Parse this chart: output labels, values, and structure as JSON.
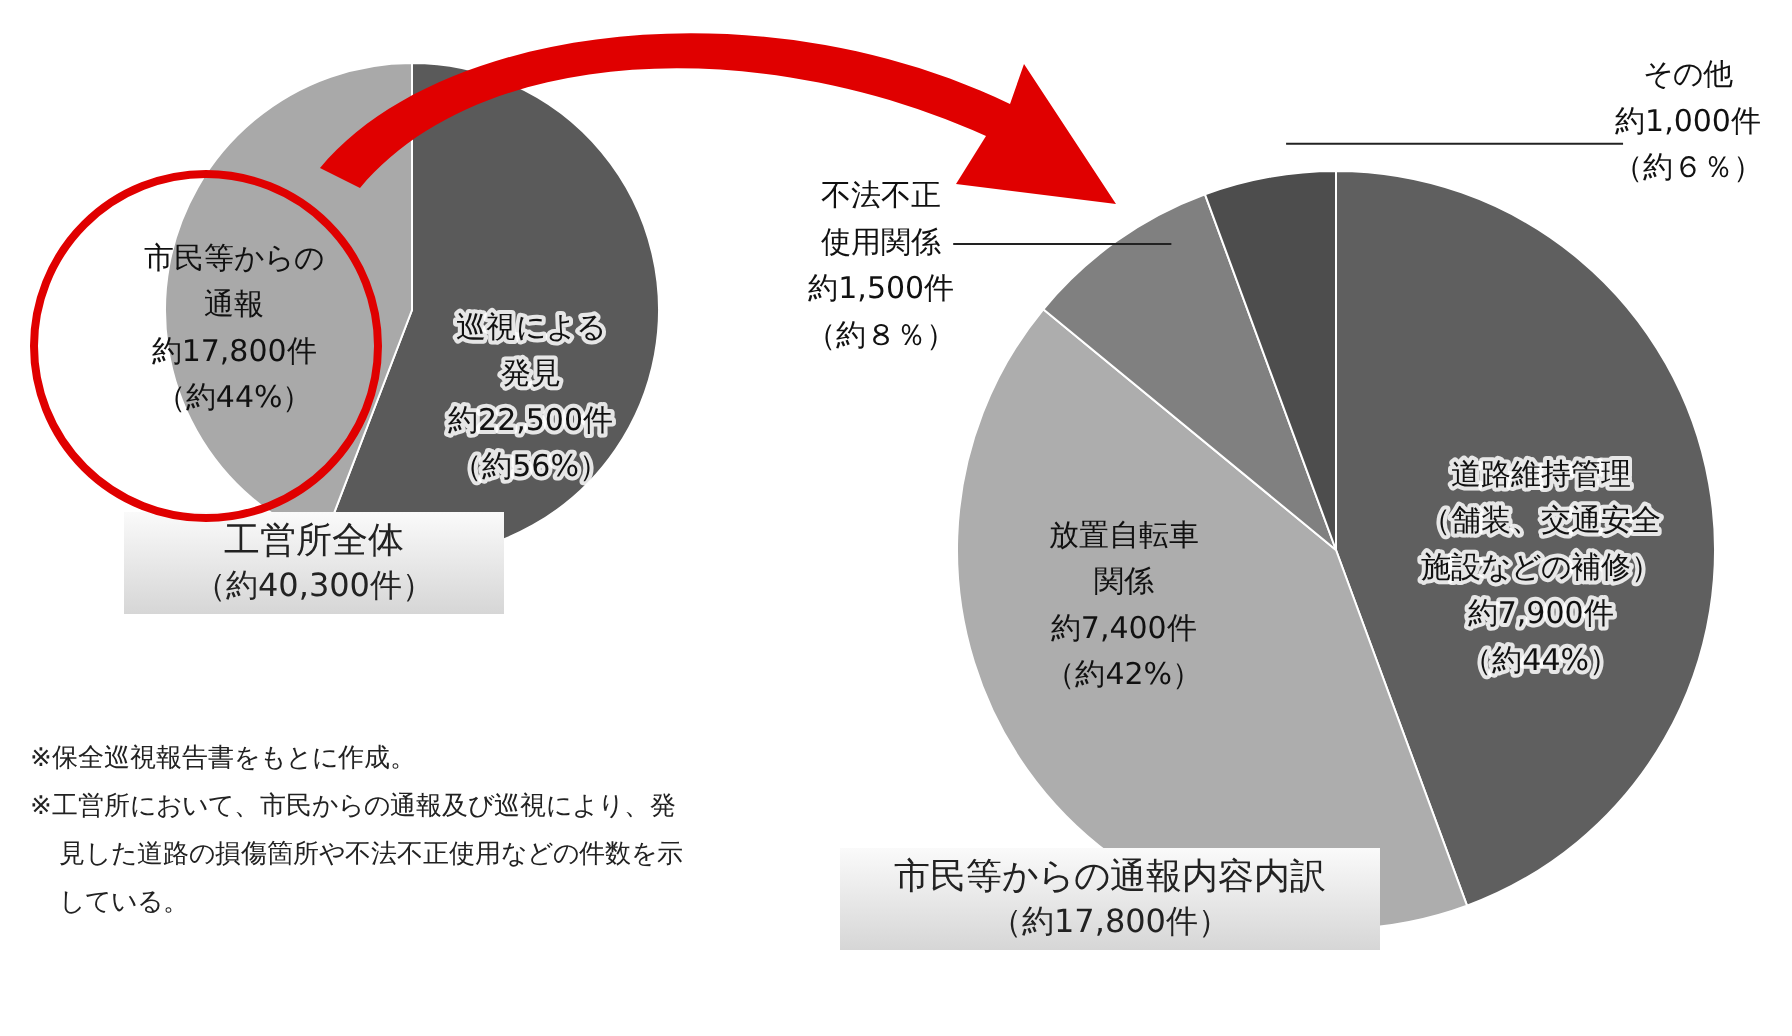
{
  "chart_data": [
    {
      "type": "pie",
      "title": "工営所全体",
      "subtitle": "（約40,300件）",
      "categories": [
        "巡視による発見",
        "市民等からの通報"
      ],
      "values": [
        22500,
        17800
      ],
      "colors": [
        "#5a5a5a",
        "#a9a9a9"
      ],
      "value_labels": [
        "約22,500件（約56%）",
        "約17,800件（約44%）"
      ],
      "annotations": [
        "※保全巡視報告書をもとに作成。",
        "※工営所において、市民からの通報及び巡視により、発見した道路の損傷箇所や不法不正使用などの件数を示している。"
      ]
    },
    {
      "type": "pie",
      "title": "市民等からの通報内容内訳",
      "subtitle": "（約17,800件）",
      "categories": [
        "道路維持管理（舗装、交通安全施設などの補修）",
        "放置自転車関係",
        "不法不正使用関係",
        "その他"
      ],
      "values": [
        7900,
        7400,
        1500,
        1000
      ],
      "colors": [
        "#5f5f5f",
        "#adadad",
        "#808080",
        "#4d4d4d"
      ],
      "value_labels": [
        "約7,900件（約44%）",
        "約7,400件（約42%）",
        "約1,500件（約８％）",
        "約1,000件（約６％）"
      ]
    }
  ]
}
